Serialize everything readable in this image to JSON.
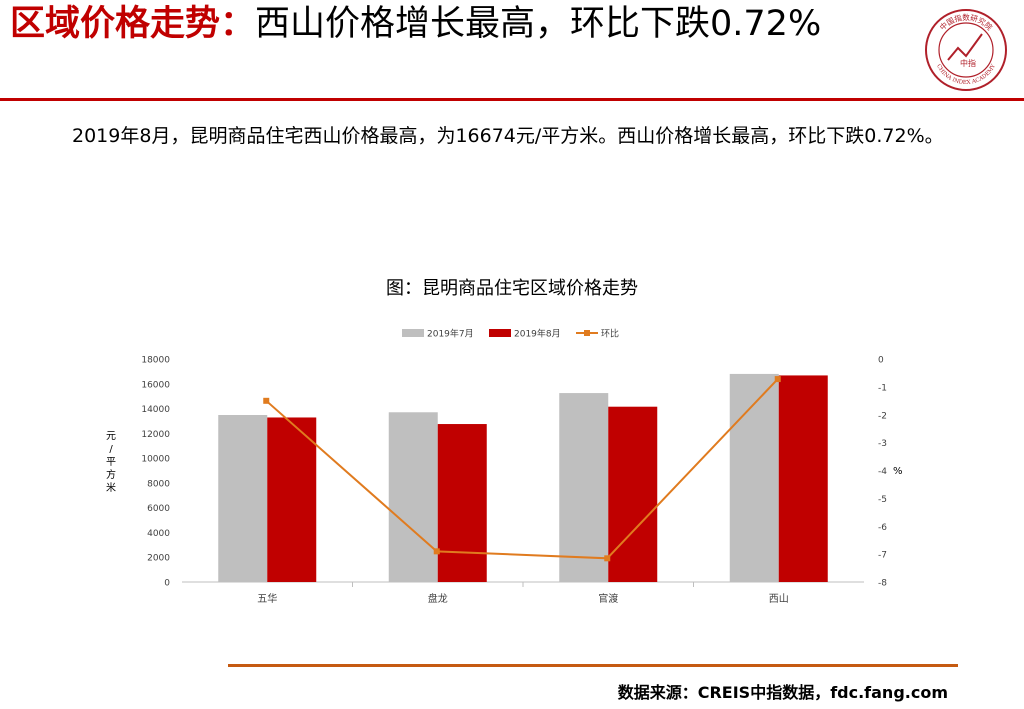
{
  "header": {
    "title_accent": "区域价格走势：",
    "title_rest": "西山价格增长最高，环比下跌0.72%"
  },
  "logo": {
    "text_top": "中国指数研究院",
    "text_bottom": "CHINA INDEX ACADEMY",
    "center_text": "中指"
  },
  "paragraph": "2019年8月，昆明商品住宅西山价格最高，为16674元/平方米。西山价格增长最高，环比下跌0.72%。",
  "chart_title": "图：昆明商品住宅区域价格走势",
  "chart_data": {
    "type": "bar",
    "categories": [
      "五华",
      "盘龙",
      "官渡",
      "西山"
    ],
    "series": [
      {
        "name": "2019年7月",
        "type": "bar",
        "color": "#bfbfbf",
        "axis": "left",
        "values": [
          13480,
          13700,
          15250,
          16795
        ]
      },
      {
        "name": "2019年8月",
        "type": "bar",
        "color": "#c00000",
        "axis": "left",
        "values": [
          13280,
          12750,
          14150,
          16674
        ]
      },
      {
        "name": "环比",
        "type": "line",
        "color": "#e07b1f",
        "axis": "right",
        "values": [
          -1.5,
          -6.9,
          -7.15,
          -0.72
        ]
      }
    ],
    "ylabel": "元/平方米",
    "ylim": [
      0,
      18000
    ],
    "yticks": [
      0,
      2000,
      4000,
      6000,
      8000,
      10000,
      12000,
      14000,
      16000,
      18000
    ],
    "y2label": "%",
    "y2lim": [
      -8,
      0
    ],
    "y2ticks": [
      0,
      -1,
      -2,
      -3,
      -4,
      -5,
      -6,
      -7,
      -8
    ],
    "legend_position": "top",
    "grid": false
  },
  "source": "数据来源：CREIS中指数据，fdc.fang.com"
}
